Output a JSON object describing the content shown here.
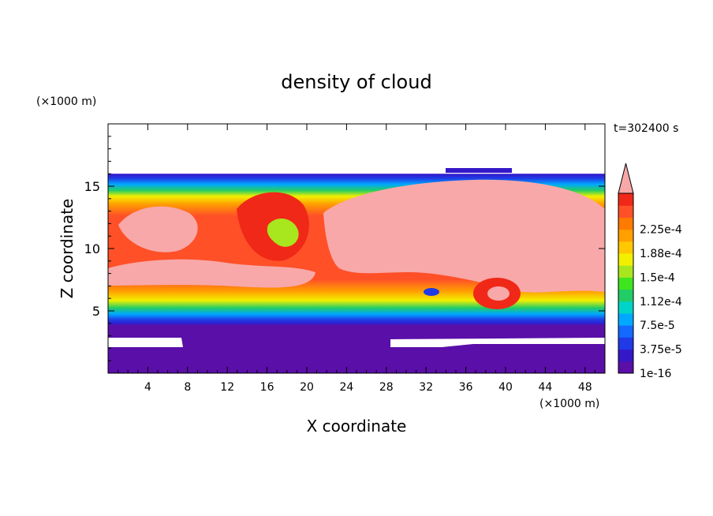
{
  "chart_data": {
    "type": "heatmap",
    "title": "density of cloud",
    "xlabel": "X coordinate",
    "ylabel": "Z coordinate",
    "x_unit": "(×1000 m)",
    "y_unit": "(×1000 m)",
    "time_label": "t=302400 s",
    "xlim": [
      0,
      50
    ],
    "ylim": [
      0,
      20
    ],
    "x_ticks": [
      4,
      8,
      12,
      16,
      20,
      24,
      28,
      32,
      36,
      40,
      44,
      48
    ],
    "y_ticks": [
      5,
      10,
      15
    ],
    "colorbar": {
      "levels": [
        "1e-16",
        "3.75e-5",
        "7.5e-5",
        "1.12e-4",
        "1.5e-4",
        "1.88e-4",
        "2.25e-4"
      ],
      "colors": [
        "#5a0fa8",
        "#3418c8",
        "#1f3ae6",
        "#1469ff",
        "#00a8ff",
        "#00d4c8",
        "#22cc66",
        "#3ee620",
        "#a8e61e",
        "#f2f000",
        "#ffc800",
        "#ffa000",
        "#ff7a00",
        "#ff5028",
        "#f02818",
        "#f8a8a8"
      ],
      "extend": "max"
    },
    "regions": {
      "cloud_top_z": 16,
      "cloud_base_z": 4,
      "background_color": "#5a0fa8",
      "core_color": "#f8a8a8",
      "clear_color": "#ffffff"
    }
  }
}
